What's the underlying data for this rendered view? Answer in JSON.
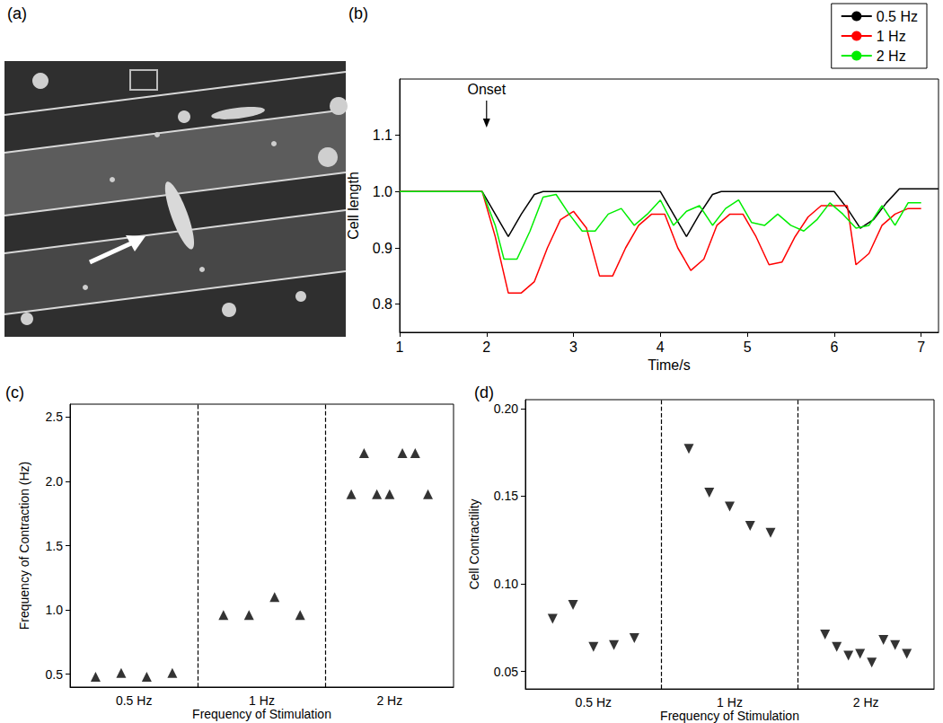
{
  "chart_data": [
    {
      "type": "image",
      "title": "(a)"
    },
    {
      "type": "line",
      "title": "(b)",
      "x_label": "Time/s",
      "y_label": "Cell length",
      "xlim": [
        1,
        7.2
      ],
      "xticks": [
        1,
        2,
        3,
        4,
        5,
        6,
        7
      ],
      "ylim": [
        0.75,
        1.2
      ],
      "yticks": [
        0.8,
        0.9,
        {
          "value": 1,
          "label": "1.0"
        },
        1.1
      ],
      "legend": "upper right",
      "annotations": [
        {
          "text": "Onset",
          "x": 2
        }
      ],
      "series": [
        {
          "name": "0.5 Hz",
          "color": "#000000",
          "x": [
            1,
            1.95,
            2.1,
            2.25,
            2.4,
            2.55,
            2.65,
            4.0,
            4.15,
            4.3,
            4.45,
            4.6,
            4.7,
            6.0,
            6.15,
            6.3,
            6.45,
            6.6,
            6.75,
            7.2
          ],
          "values": [
            1,
            1,
            0.96,
            0.92,
            0.96,
            0.995,
            1.0,
            1.0,
            0.96,
            0.92,
            0.96,
            0.995,
            1.0,
            1.0,
            0.97,
            0.935,
            0.95,
            0.98,
            1.005,
            1.005
          ]
        },
        {
          "name": "1 Hz",
          "color": "#ff0000",
          "x": [
            1,
            1.95,
            2.1,
            2.25,
            2.4,
            2.55,
            2.7,
            2.85,
            3.0,
            3.15,
            3.3,
            3.45,
            3.6,
            3.75,
            3.9,
            4.05,
            4.2,
            4.35,
            4.5,
            4.65,
            4.8,
            4.95,
            5.1,
            5.25,
            5.4,
            5.55,
            5.7,
            5.85,
            6.0,
            6.15,
            6.25,
            6.4,
            6.55,
            6.7,
            6.85,
            7.0
          ],
          "values": [
            1,
            1,
            0.92,
            0.82,
            0.82,
            0.84,
            0.9,
            0.95,
            0.965,
            0.935,
            0.85,
            0.85,
            0.9,
            0.94,
            0.96,
            0.96,
            0.9,
            0.86,
            0.88,
            0.94,
            0.96,
            0.96,
            0.92,
            0.87,
            0.875,
            0.92,
            0.955,
            0.975,
            0.975,
            0.975,
            0.87,
            0.89,
            0.94,
            0.96,
            0.97,
            0.97
          ]
        },
        {
          "name": "2 Hz",
          "color": "#00ee00",
          "x": [
            1,
            1.95,
            2.1,
            2.2,
            2.35,
            2.5,
            2.65,
            2.8,
            2.95,
            3.1,
            3.25,
            3.4,
            3.55,
            3.7,
            3.85,
            4.0,
            4.15,
            4.3,
            4.45,
            4.6,
            4.75,
            4.9,
            5.05,
            5.2,
            5.35,
            5.5,
            5.65,
            5.8,
            5.95,
            6.1,
            6.25,
            6.4,
            6.55,
            6.7,
            6.85,
            7.0
          ],
          "values": [
            1,
            1,
            0.94,
            0.88,
            0.88,
            0.93,
            0.99,
            0.995,
            0.96,
            0.93,
            0.93,
            0.96,
            0.97,
            0.94,
            0.96,
            0.985,
            0.94,
            0.965,
            0.975,
            0.94,
            0.97,
            0.985,
            0.945,
            0.94,
            0.96,
            0.94,
            0.93,
            0.95,
            0.98,
            0.96,
            0.935,
            0.94,
            0.975,
            0.94,
            0.98,
            0.98
          ]
        }
      ]
    },
    {
      "type": "scatter",
      "title": "(c)",
      "x_label": "Frequency of Stimulation",
      "y_label": "Frequency of Contraction (Hz)",
      "categories": [
        "0.5 Hz",
        "1 Hz",
        "2 Hz"
      ],
      "values": [
        [
          0.48,
          0.51,
          0.48,
          0.51
        ],
        [
          0.96,
          0.96,
          1.1,
          0.96
        ],
        [
          1.9,
          2.22,
          1.9,
          1.9,
          2.22,
          2.22,
          1.9
        ]
      ],
      "ylim": [
        0.4,
        2.6
      ],
      "yticks": [
        0.5,
        {
          "value": 1,
          "label": "1.0"
        },
        1.5,
        {
          "value": 2,
          "label": "2.0"
        },
        2.5
      ],
      "marker": "triangle-up",
      "color": "#000000"
    },
    {
      "type": "scatter",
      "title": "(d)",
      "x_label": "Frequency of Stimulation",
      "y_label": "Cell Contractility",
      "categories": [
        "0.5 Hz",
        "1 Hz",
        "2 Hz"
      ],
      "values": [
        [
          0.08,
          0.088,
          0.064,
          0.065,
          0.069
        ],
        [
          0.177,
          0.152,
          0.144,
          0.133,
          0.129
        ],
        [
          0.071,
          0.064,
          0.059,
          0.06,
          0.055,
          0.068,
          0.065,
          0.06
        ]
      ],
      "ylim": [
        0.04,
        0.205
      ],
      "yticks": [
        0.05,
        {
          "value": 0.1,
          "label": "0.10"
        },
        0.15,
        {
          "value": 0.2,
          "label": "0.20"
        }
      ],
      "marker": "triangle-down",
      "color": "#000000"
    }
  ]
}
